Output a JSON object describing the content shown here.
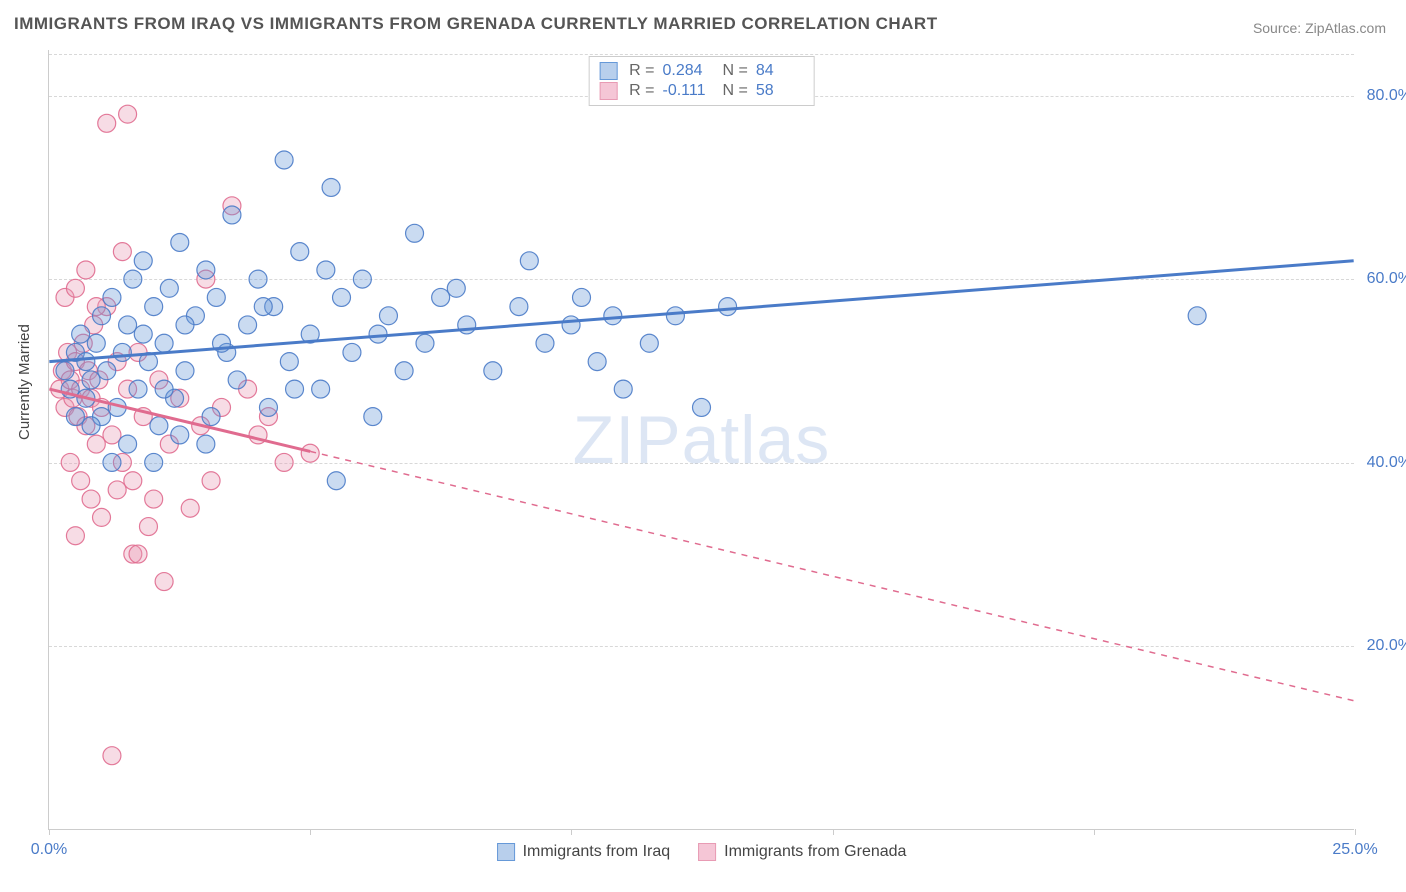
{
  "title": "IMMIGRANTS FROM IRAQ VS IMMIGRANTS FROM GRENADA CURRENTLY MARRIED CORRELATION CHART",
  "source_prefix": "Source: ",
  "source_name": "ZipAtlas.com",
  "ylabel": "Currently Married",
  "watermark_a": "ZIP",
  "watermark_b": "atlas",
  "chart": {
    "type": "scatter",
    "background_color": "#ffffff",
    "grid_color": "#d8d8d8",
    "axis_color": "#cccccc",
    "tick_label_color": "#4a7bc8",
    "label_fontsize": 15,
    "tick_fontsize": 16,
    "title_fontsize": 17,
    "title_color": "#555555",
    "marker_radius": 9,
    "marker_fill_opacity": 0.35,
    "marker_stroke_opacity": 0.9,
    "trend_line_width": 3,
    "xlim": [
      0,
      25
    ],
    "ylim": [
      0,
      85
    ],
    "xticks": [
      0,
      5,
      10,
      15,
      20,
      25
    ],
    "xtick_labels": [
      "0.0%",
      "",
      "",
      "",
      "",
      "25.0%"
    ],
    "yticks": [
      20,
      40,
      60,
      80
    ],
    "ytick_labels": [
      "20.0%",
      "40.0%",
      "60.0%",
      "80.0%"
    ],
    "series": [
      {
        "name": "Immigrants from Iraq",
        "color": "#6699d8",
        "stroke": "#4a7bc8",
        "swatch_fill": "#b8cfec",
        "swatch_border": "#6699d8",
        "stats": {
          "R": "0.284",
          "N": "84"
        },
        "trend": {
          "x1": 0,
          "y1": 51,
          "x2": 25,
          "y2": 62,
          "solid_to_x": 25,
          "dash_from_x": 25
        },
        "points": [
          [
            0.3,
            50
          ],
          [
            0.4,
            48
          ],
          [
            0.5,
            52
          ],
          [
            0.6,
            54
          ],
          [
            0.7,
            47
          ],
          [
            0.8,
            49
          ],
          [
            0.9,
            53
          ],
          [
            1.0,
            56
          ],
          [
            1.1,
            50
          ],
          [
            1.2,
            58
          ],
          [
            1.3,
            46
          ],
          [
            1.4,
            52
          ],
          [
            1.5,
            55
          ],
          [
            1.6,
            60
          ],
          [
            1.7,
            48
          ],
          [
            1.8,
            62
          ],
          [
            1.9,
            51
          ],
          [
            2.0,
            57
          ],
          [
            2.1,
            44
          ],
          [
            2.2,
            53
          ],
          [
            2.3,
            59
          ],
          [
            2.4,
            47
          ],
          [
            2.5,
            64
          ],
          [
            2.6,
            50
          ],
          [
            2.8,
            56
          ],
          [
            3.0,
            61
          ],
          [
            3.1,
            45
          ],
          [
            3.2,
            58
          ],
          [
            3.4,
            52
          ],
          [
            3.5,
            67
          ],
          [
            3.6,
            49
          ],
          [
            3.8,
            55
          ],
          [
            4.0,
            60
          ],
          [
            4.2,
            46
          ],
          [
            4.3,
            57
          ],
          [
            4.5,
            73
          ],
          [
            4.6,
            51
          ],
          [
            4.8,
            63
          ],
          [
            5.0,
            54
          ],
          [
            5.2,
            48
          ],
          [
            5.4,
            70
          ],
          [
            5.5,
            38
          ],
          [
            5.6,
            58
          ],
          [
            5.8,
            52
          ],
          [
            6.0,
            60
          ],
          [
            6.2,
            45
          ],
          [
            6.5,
            56
          ],
          [
            6.8,
            50
          ],
          [
            7.0,
            65
          ],
          [
            7.2,
            53
          ],
          [
            7.5,
            58
          ],
          [
            8.0,
            55
          ],
          [
            8.5,
            50
          ],
          [
            9.0,
            57
          ],
          [
            9.2,
            62
          ],
          [
            9.5,
            53
          ],
          [
            10.0,
            55
          ],
          [
            10.2,
            58
          ],
          [
            10.5,
            51
          ],
          [
            10.8,
            56
          ],
          [
            11.0,
            48
          ],
          [
            11.5,
            53
          ],
          [
            12.0,
            56
          ],
          [
            12.5,
            46
          ],
          [
            13.0,
            57
          ],
          [
            22.0,
            56
          ],
          [
            1.0,
            45
          ],
          [
            1.5,
            42
          ],
          [
            2.0,
            40
          ],
          [
            2.5,
            43
          ],
          [
            0.8,
            44
          ],
          [
            1.2,
            40
          ],
          [
            3.0,
            42
          ],
          [
            0.5,
            45
          ],
          [
            0.7,
            51
          ],
          [
            1.8,
            54
          ],
          [
            2.2,
            48
          ],
          [
            2.6,
            55
          ],
          [
            3.3,
            53
          ],
          [
            4.1,
            57
          ],
          [
            4.7,
            48
          ],
          [
            5.3,
            61
          ],
          [
            6.3,
            54
          ],
          [
            7.8,
            59
          ]
        ]
      },
      {
        "name": "Immigrants from Grenada",
        "color": "#e89bb4",
        "stroke": "#e06b8f",
        "swatch_fill": "#f5c6d6",
        "swatch_border": "#e89bb4",
        "stats": {
          "R": "-0.111",
          "N": "58"
        },
        "trend": {
          "x1": 0,
          "y1": 48,
          "x2": 25,
          "y2": 14,
          "solid_to_x": 5,
          "dash_from_x": 5
        },
        "points": [
          [
            0.2,
            48
          ],
          [
            0.25,
            50
          ],
          [
            0.3,
            46
          ],
          [
            0.35,
            52
          ],
          [
            0.4,
            49
          ],
          [
            0.45,
            47
          ],
          [
            0.5,
            51
          ],
          [
            0.55,
            45
          ],
          [
            0.6,
            48
          ],
          [
            0.65,
            53
          ],
          [
            0.7,
            44
          ],
          [
            0.75,
            50
          ],
          [
            0.8,
            47
          ],
          [
            0.85,
            55
          ],
          [
            0.9,
            42
          ],
          [
            0.95,
            49
          ],
          [
            1.0,
            46
          ],
          [
            1.1,
            57
          ],
          [
            1.2,
            43
          ],
          [
            1.3,
            51
          ],
          [
            1.4,
            40
          ],
          [
            1.5,
            48
          ],
          [
            1.6,
            38
          ],
          [
            1.7,
            52
          ],
          [
            1.8,
            45
          ],
          [
            2.0,
            36
          ],
          [
            2.1,
            49
          ],
          [
            2.3,
            42
          ],
          [
            2.5,
            47
          ],
          [
            2.7,
            35
          ],
          [
            2.9,
            44
          ],
          [
            3.0,
            60
          ],
          [
            3.1,
            38
          ],
          [
            3.3,
            46
          ],
          [
            3.5,
            68
          ],
          [
            0.3,
            58
          ],
          [
            0.5,
            59
          ],
          [
            0.7,
            61
          ],
          [
            0.9,
            57
          ],
          [
            1.1,
            77
          ],
          [
            1.4,
            63
          ],
          [
            1.6,
            30
          ],
          [
            1.9,
            33
          ],
          [
            0.4,
            40
          ],
          [
            0.6,
            38
          ],
          [
            0.8,
            36
          ],
          [
            1.0,
            34
          ],
          [
            1.3,
            37
          ],
          [
            1.5,
            78
          ],
          [
            0.5,
            32
          ],
          [
            1.7,
            30
          ],
          [
            2.2,
            27
          ],
          [
            1.2,
            8
          ],
          [
            4.0,
            43
          ],
          [
            4.5,
            40
          ],
          [
            5.0,
            41
          ],
          [
            3.8,
            48
          ],
          [
            4.2,
            45
          ]
        ]
      }
    ]
  },
  "legend_stats_labels": {
    "R": "R =",
    "N": "N ="
  }
}
